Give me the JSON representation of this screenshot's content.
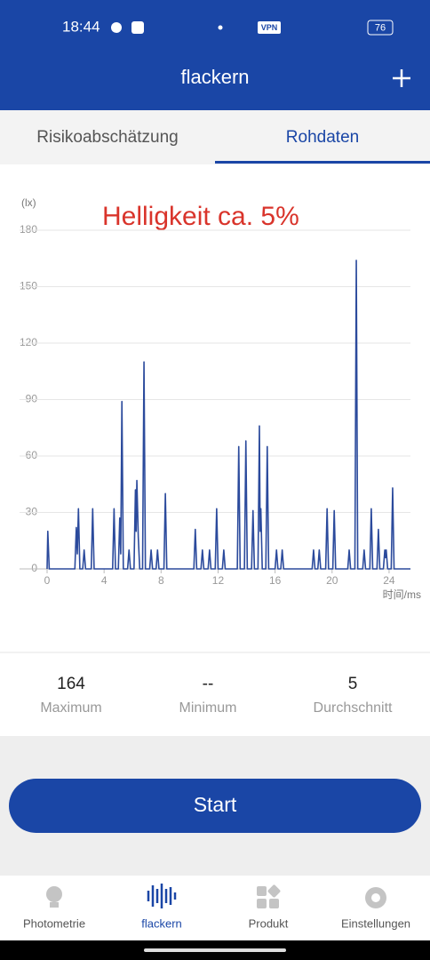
{
  "status_bar": {
    "time": "18:44",
    "vpn": "VPN",
    "battery": "76"
  },
  "header": {
    "title": "flackern"
  },
  "tabs": [
    "Risikoabschätzung",
    "Rohdaten"
  ],
  "chart_data": {
    "type": "line",
    "annotation": "Helligkeit ca. 5%",
    "y_unit": "(lx)",
    "x_label": "时间/ms",
    "color": "#2b4a9c",
    "grid": true,
    "x": [
      0,
      0.05,
      0.15,
      1.95,
      2.05,
      2.12,
      2.2,
      2.3,
      2.5,
      2.6,
      2.7,
      3.1,
      3.2,
      3.3,
      4.6,
      4.7,
      4.8,
      5.0,
      5.1,
      5.17,
      5.25,
      5.35,
      5.65,
      5.75,
      5.85,
      6.1,
      6.2,
      6.25,
      6.3,
      6.4,
      6.5,
      6.7,
      6.8,
      6.9,
      7.2,
      7.3,
      7.4,
      7.65,
      7.75,
      7.85,
      8.2,
      8.3,
      8.4,
      10.3,
      10.4,
      10.5,
      10.8,
      10.9,
      11.0,
      11.3,
      11.4,
      11.5,
      11.8,
      11.9,
      12.0,
      12.3,
      12.4,
      12.5,
      13.35,
      13.45,
      13.55,
      13.85,
      13.95,
      14.05,
      14.35,
      14.45,
      14.55,
      14.8,
      14.9,
      14.95,
      15.0,
      15.1,
      15.35,
      15.45,
      15.55,
      16.0,
      16.1,
      16.2,
      16.4,
      16.5,
      16.6,
      18.6,
      18.7,
      18.8,
      19.0,
      19.1,
      19.2,
      19.55,
      19.65,
      19.75,
      20.05,
      20.15,
      20.25,
      21.1,
      21.2,
      21.3,
      21.6,
      21.7,
      21.8,
      22.15,
      22.25,
      22.35,
      22.65,
      22.75,
      22.85,
      23.15,
      23.25,
      23.35,
      23.6,
      23.7,
      23.75,
      23.8,
      23.9,
      24.15,
      24.25,
      24.35,
      25.5
    ],
    "values": [
      0,
      20,
      0,
      0,
      22,
      8,
      32,
      0,
      0,
      10,
      0,
      0,
      32,
      0,
      0,
      32,
      0,
      0,
      27,
      8,
      89,
      0,
      0,
      10,
      0,
      0,
      42,
      20,
      47,
      17,
      0,
      0,
      110,
      0,
      0,
      10,
      0,
      0,
      10,
      0,
      0,
      40,
      0,
      0,
      21,
      0,
      0,
      10,
      0,
      0,
      10,
      0,
      0,
      32,
      0,
      0,
      10,
      0,
      0,
      65,
      0,
      0,
      68,
      0,
      0,
      31,
      0,
      0,
      76,
      20,
      32,
      0,
      0,
      65,
      0,
      0,
      10,
      0,
      0,
      10,
      0,
      0,
      10,
      0,
      0,
      10,
      0,
      0,
      32,
      0,
      0,
      31,
      0,
      0,
      10,
      0,
      0,
      164,
      0,
      0,
      10,
      0,
      0,
      32,
      0,
      0,
      21,
      0,
      0,
      10,
      6,
      10,
      0,
      0,
      43,
      0,
      0
    ],
    "xlim": [
      0,
      25.5
    ],
    "ylim": [
      0,
      180
    ],
    "xticks": [
      0,
      4,
      8,
      12,
      16,
      20,
      24
    ],
    "yticks": [
      0,
      30,
      60,
      90,
      120,
      150,
      180
    ]
  },
  "stats": [
    {
      "value": "164",
      "label": "Maximum"
    },
    {
      "value": "--",
      "label": "Minimum"
    },
    {
      "value": "5",
      "label": "Durchschnitt"
    }
  ],
  "button": "Start",
  "nav": [
    {
      "label": "Photometrie"
    },
    {
      "label": "flackern"
    },
    {
      "label": "Produkt"
    },
    {
      "label": "Einstellungen"
    }
  ]
}
